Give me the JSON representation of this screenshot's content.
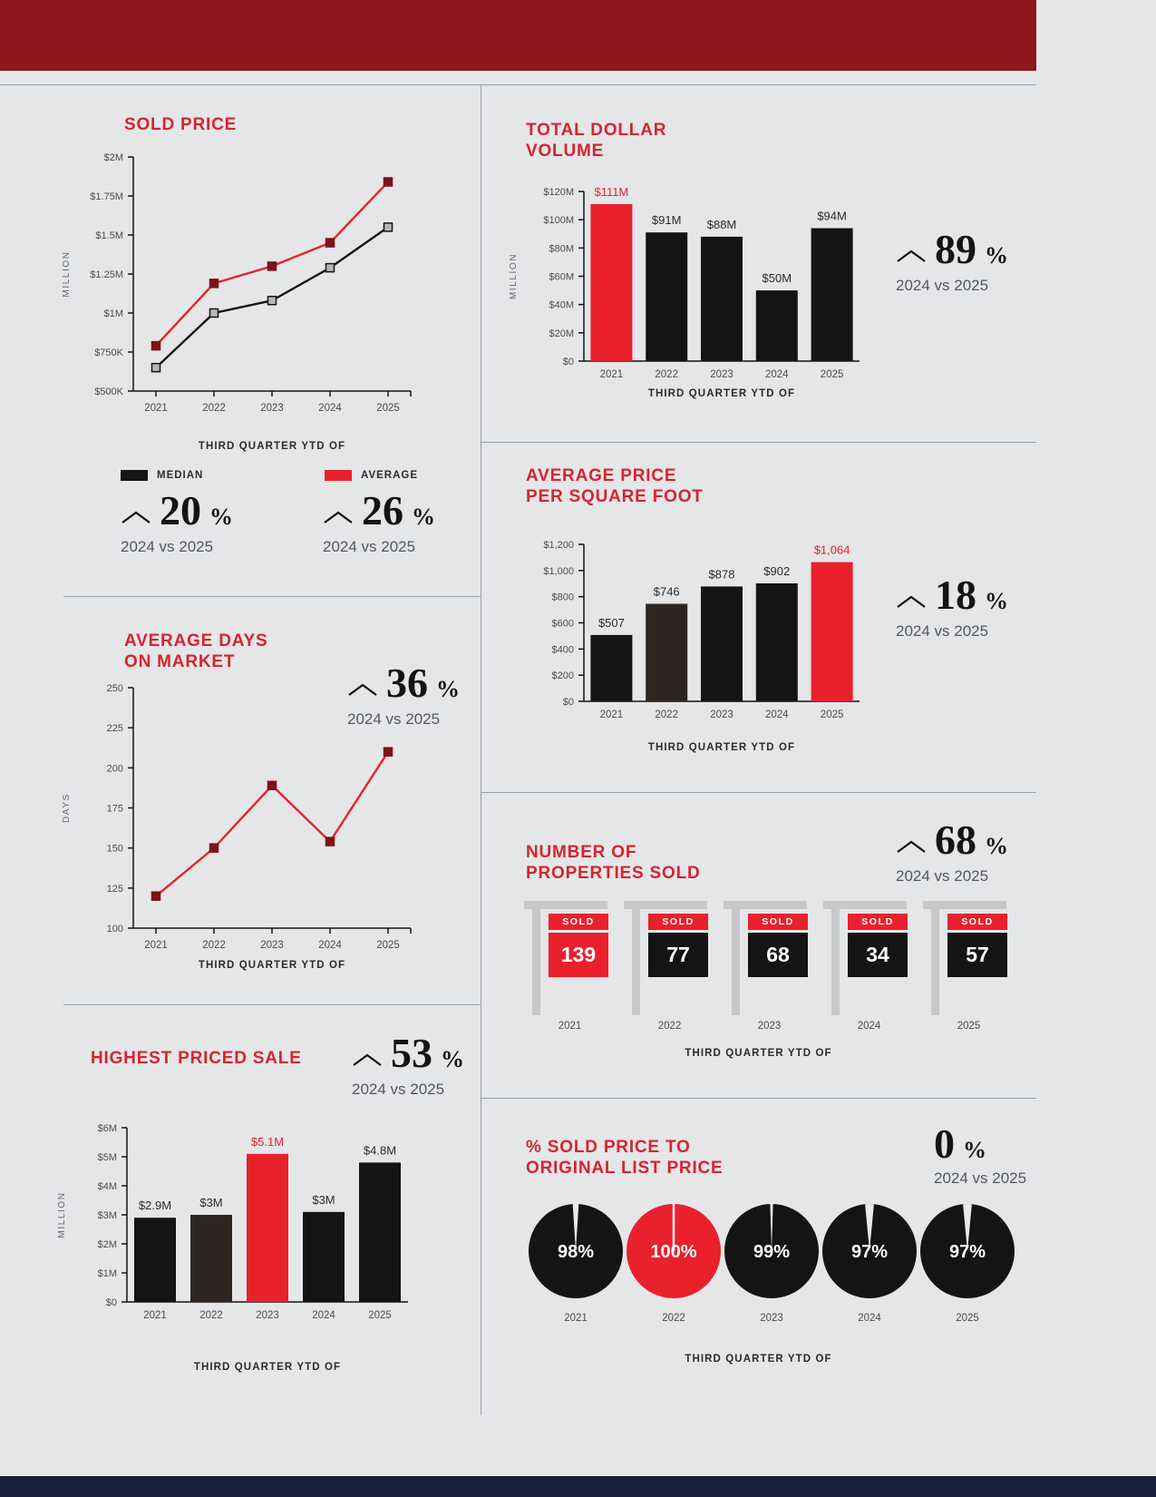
{
  "page": {
    "background": "#e5e6e8",
    "accent_red": "#e8212d",
    "title_red": "#d7242d",
    "dark": "#141414",
    "top_band_color": "#8f161d",
    "bottom_band_color": "#16203a"
  },
  "labels": {
    "x_axis_title": "THIRD QUARTER YTD OF",
    "compare_caption": "2024 vs 2025"
  },
  "sections": {
    "sold_price": {
      "title": "SOLD PRICE",
      "legend": [
        {
          "label": "MEDIAN",
          "color": "#141414"
        },
        {
          "label": "AVERAGE",
          "color": "#e8212d"
        }
      ],
      "median_stat": {
        "arrow": true,
        "value": "20",
        "unit": "%"
      },
      "average_stat": {
        "arrow": true,
        "value": "26",
        "unit": "%"
      }
    },
    "total_dollar_volume": {
      "title_line1": "TOTAL DOLLAR",
      "title_line2": "VOLUME",
      "stat": {
        "arrow": true,
        "value": "89",
        "unit": "%"
      }
    },
    "avg_price_sqft": {
      "title_line1": "AVERAGE PRICE",
      "title_line2": "PER SQUARE FOOT",
      "stat": {
        "arrow": true,
        "value": "18",
        "unit": "%"
      }
    },
    "days_on_market": {
      "title_line1": "AVERAGE DAYS",
      "title_line2": "ON MARKET",
      "stat": {
        "arrow": true,
        "value": "36",
        "unit": "%"
      }
    },
    "properties_sold": {
      "title_line1": "NUMBER OF",
      "title_line2": "PROPERTIES SOLD",
      "stat": {
        "arrow": true,
        "value": "68",
        "unit": "%"
      }
    },
    "highest_priced_sale": {
      "title": "HIGHEST PRICED SALE",
      "stat": {
        "arrow": true,
        "value": "53",
        "unit": "%"
      }
    },
    "pct_sold_to_list": {
      "title_line1": "% SOLD PRICE TO",
      "title_line2": "ORIGINAL LIST PRICE",
      "stat": {
        "arrow": false,
        "value": "0",
        "unit": "%"
      }
    }
  },
  "chart_data": [
    {
      "id": "sold_price",
      "type": "line",
      "title": "SOLD PRICE",
      "categories": [
        "2021",
        "2022",
        "2023",
        "2024",
        "2025"
      ],
      "series": [
        {
          "name": "MEDIAN",
          "color": "#141414",
          "marker_fill": "#b4b6b8",
          "marker_stroke": "#141414",
          "values": [
            650000,
            1000000,
            1080000,
            1290000,
            1550000
          ]
        },
        {
          "name": "AVERAGE",
          "color": "#e8212d",
          "marker_fill": "#7d1218",
          "marker_stroke": "#7d1218",
          "values": [
            790000,
            1190000,
            1300000,
            1450000,
            1840000
          ]
        }
      ],
      "ylim": [
        500000,
        2000000
      ],
      "yticks": [
        {
          "v": 2000000,
          "label": "$2M"
        },
        {
          "v": 1750000,
          "label": "$1.75M"
        },
        {
          "v": 1500000,
          "label": "$1.5M"
        },
        {
          "v": 1250000,
          "label": "$1.25M"
        },
        {
          "v": 1000000,
          "label": "$1M"
        },
        {
          "v": 750000,
          "label": "$750K"
        },
        {
          "v": 500000,
          "label": "$500K"
        }
      ],
      "ylabel": "MILLION",
      "xlabel": "THIRD QUARTER YTD OF"
    },
    {
      "id": "total_dollar_volume",
      "type": "bar",
      "title": "TOTAL DOLLAR VOLUME",
      "categories": [
        "2021",
        "2022",
        "2023",
        "2024",
        "2025"
      ],
      "values": [
        111,
        91,
        88,
        50,
        94
      ],
      "bar_labels": [
        "$111M",
        "$91M",
        "$88M",
        "$50M",
        "$94M"
      ],
      "bar_colors": [
        "#e8212d",
        "#141414",
        "#141414",
        "#141414",
        "#141414"
      ],
      "label_colors": [
        "#e8212d",
        "#2b2b2b",
        "#2b2b2b",
        "#2b2b2b",
        "#2b2b2b"
      ],
      "ylim": [
        0,
        120
      ],
      "yticks": [
        {
          "v": 120,
          "label": "$120M"
        },
        {
          "v": 100,
          "label": "$100M"
        },
        {
          "v": 80,
          "label": "$80M"
        },
        {
          "v": 60,
          "label": "$60M"
        },
        {
          "v": 40,
          "label": "$40M"
        },
        {
          "v": 20,
          "label": "$20M"
        },
        {
          "v": 0,
          "label": "$0"
        }
      ],
      "ylabel": "MILLION",
      "xlabel": "THIRD QUARTER YTD OF"
    },
    {
      "id": "avg_price_sqft",
      "type": "bar",
      "title": "AVERAGE PRICE PER SQUARE FOOT",
      "categories": [
        "2021",
        "2022",
        "2023",
        "2024",
        "2025"
      ],
      "values": [
        507,
        746,
        878,
        902,
        1064
      ],
      "bar_labels": [
        "$507",
        "$746",
        "$878",
        "$902",
        "$1,064"
      ],
      "bar_colors": [
        "#141414",
        "#2e2522",
        "#141414",
        "#141414",
        "#e8212d"
      ],
      "label_colors": [
        "#2b2b2b",
        "#2b2b2b",
        "#2b2b2b",
        "#2b2b2b",
        "#e8212d"
      ],
      "ylim": [
        0,
        1200
      ],
      "yticks": [
        {
          "v": 1200,
          "label": "$1,200"
        },
        {
          "v": 1000,
          "label": "$1,000"
        },
        {
          "v": 800,
          "label": "$800"
        },
        {
          "v": 600,
          "label": "$600"
        },
        {
          "v": 400,
          "label": "$400"
        },
        {
          "v": 200,
          "label": "$200"
        },
        {
          "v": 0,
          "label": "$0"
        }
      ],
      "ylabel": "",
      "xlabel": "THIRD QUARTER YTD OF"
    },
    {
      "id": "days_on_market",
      "type": "line",
      "title": "AVERAGE DAYS ON MARKET",
      "categories": [
        "2021",
        "2022",
        "2023",
        "2024",
        "2025"
      ],
      "series": [
        {
          "name": "DAYS",
          "color": "#e8212d",
          "marker_fill": "#7d1218",
          "marker_stroke": "#7d1218",
          "values": [
            120,
            150,
            189,
            154,
            210
          ]
        }
      ],
      "ylim": [
        100,
        250
      ],
      "yticks": [
        {
          "v": 250,
          "label": "250"
        },
        {
          "v": 225,
          "label": "225"
        },
        {
          "v": 200,
          "label": "200"
        },
        {
          "v": 175,
          "label": "175"
        },
        {
          "v": 150,
          "label": "150"
        },
        {
          "v": 125,
          "label": "125"
        },
        {
          "v": 100,
          "label": "100"
        }
      ],
      "ylabel": "DAYS",
      "xlabel": "THIRD QUARTER YTD OF"
    },
    {
      "id": "highest_priced_sale",
      "type": "bar",
      "title": "HIGHEST PRICED SALE",
      "categories": [
        "2021",
        "2022",
        "2023",
        "2024",
        "2025"
      ],
      "values": [
        2.9,
        3.0,
        5.1,
        3.1,
        4.8
      ],
      "bar_labels": [
        "$2.9M",
        "$3M",
        "$5.1M",
        "$3M",
        "$4.8M"
      ],
      "bar_colors": [
        "#141414",
        "#2e2522",
        "#e8212d",
        "#141414",
        "#141414"
      ],
      "label_colors": [
        "#2b2b2b",
        "#2b2b2b",
        "#e8212d",
        "#2b2b2b",
        "#2b2b2b"
      ],
      "ylim": [
        0,
        6
      ],
      "yticks": [
        {
          "v": 6,
          "label": "$6M"
        },
        {
          "v": 5,
          "label": "$5M"
        },
        {
          "v": 4,
          "label": "$4M"
        },
        {
          "v": 3,
          "label": "$3M"
        },
        {
          "v": 2,
          "label": "$2M"
        },
        {
          "v": 1,
          "label": "$1M"
        },
        {
          "v": 0,
          "label": "$0"
        }
      ],
      "ylabel": "MILLION",
      "xlabel": "THIRD QUARTER YTD OF"
    },
    {
      "id": "properties_sold",
      "type": "signs",
      "title": "NUMBER OF PROPERTIES SOLD",
      "banner_label": "SOLD",
      "items": [
        {
          "year": "2021",
          "value": 139,
          "color": "#e8212d"
        },
        {
          "year": "2022",
          "value": 77,
          "color": "#141414"
        },
        {
          "year": "2023",
          "value": 68,
          "color": "#141414"
        },
        {
          "year": "2024",
          "value": 34,
          "color": "#141414"
        },
        {
          "year": "2025",
          "value": 57,
          "color": "#141414"
        }
      ],
      "xlabel": "THIRD QUARTER YTD OF"
    },
    {
      "id": "pct_sold_to_list",
      "type": "pie",
      "title": "% SOLD PRICE TO ORIGINAL LIST PRICE",
      "gap_color": "#e9eaec",
      "items": [
        {
          "year": "2021",
          "value": 98,
          "color": "#141414"
        },
        {
          "year": "2022",
          "value": 100,
          "color": "#e8212d"
        },
        {
          "year": "2023",
          "value": 99,
          "color": "#141414"
        },
        {
          "year": "2024",
          "value": 97,
          "color": "#141414"
        },
        {
          "year": "2025",
          "value": 97,
          "color": "#141414"
        }
      ],
      "xlabel": "THIRD QUARTER YTD OF"
    }
  ]
}
